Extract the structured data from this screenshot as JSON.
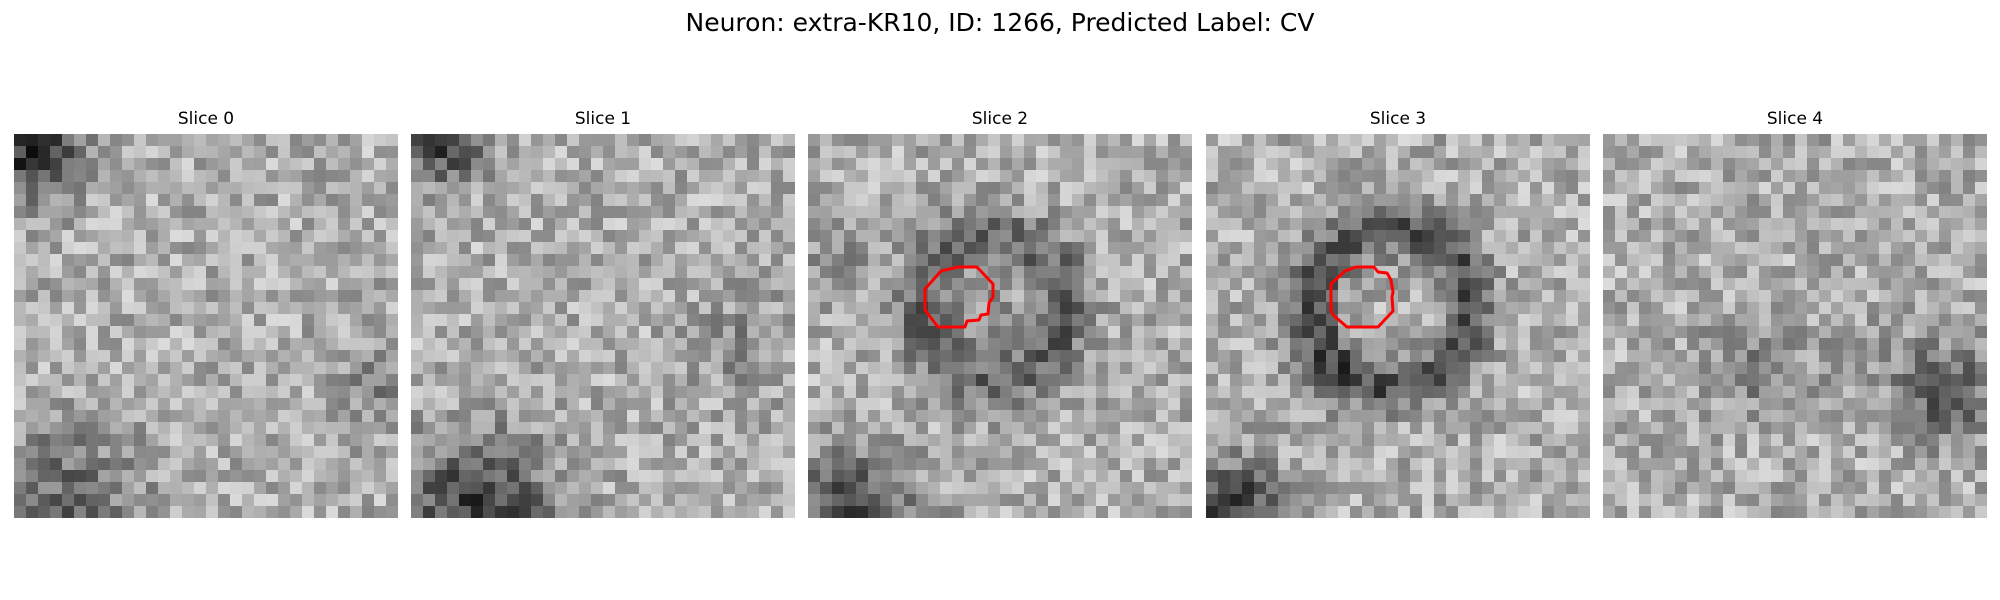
{
  "figure": {
    "title": "Neuron: extra-KR10, ID: 1266, Predicted Label: CV"
  },
  "panels": [
    {
      "title": "Slice 0",
      "has_contour": false
    },
    {
      "title": "Slice 1",
      "has_contour": false
    },
    {
      "title": "Slice 2",
      "has_contour": true
    },
    {
      "title": "Slice 3",
      "has_contour": true
    },
    {
      "title": "Slice 4",
      "has_contour": false
    }
  ],
  "colors": {
    "contour": "#ff0000",
    "background": "#ffffff"
  }
}
